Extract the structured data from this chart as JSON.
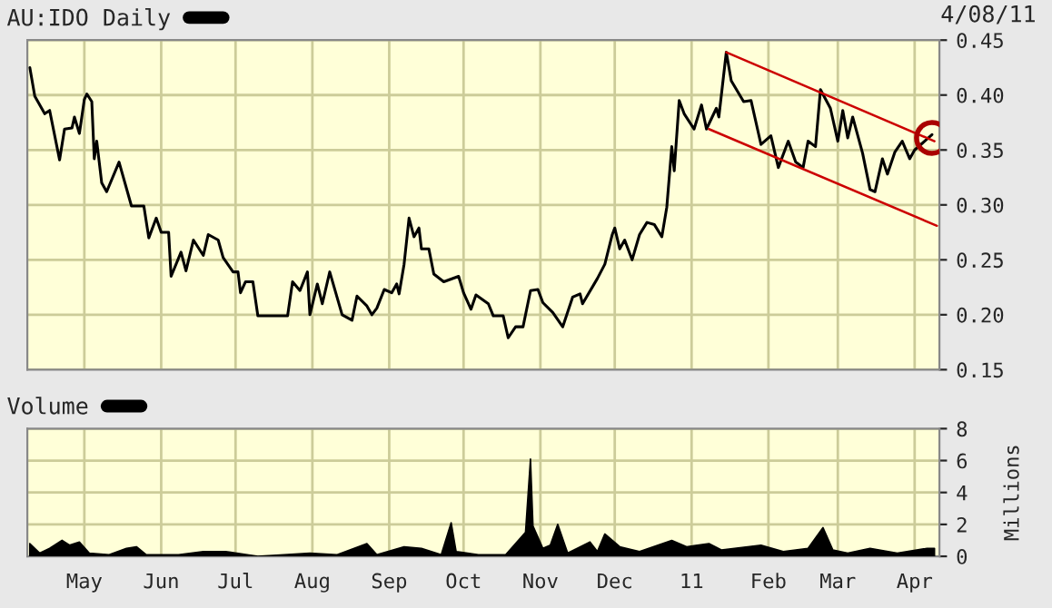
{
  "chart_data": [
    {
      "type": "line",
      "annotations": [
        "4/08/11"
      ],
      "legend": "top left",
      "grid": true,
      "tick_labels": "y",
      "xlim": [
        "2010-04-08",
        "2011-04-11"
      ],
      "xticks": [
        {
          "value": "2010-05-01",
          "label": null
        },
        {
          "value": "2010-06-01",
          "label": null
        },
        {
          "value": "2010-07-01",
          "label": null
        },
        {
          "value": "2010-08-01",
          "label": null
        },
        {
          "value": "2010-09-01",
          "label": null
        },
        {
          "value": "2010-10-01",
          "label": null
        },
        {
          "value": "2010-11-01",
          "label": null
        },
        {
          "value": "2010-12-01",
          "label": null
        },
        {
          "value": "2011-01-01",
          "label": null
        },
        {
          "value": "2011-02-01",
          "label": null
        },
        {
          "value": "2011-03-01",
          "label": null
        },
        {
          "value": "2011-04-01",
          "label": null
        }
      ],
      "ylim": [
        0.15,
        0.45
      ],
      "yticks": [
        {
          "value": 0.15,
          "label": "0.15"
        },
        {
          "value": 0.2,
          "label": "0.20"
        },
        {
          "value": 0.25,
          "label": "0.25"
        },
        {
          "value": 0.3,
          "label": "0.30"
        },
        {
          "value": 0.35,
          "label": "0.35"
        },
        {
          "value": 0.4,
          "label": "0.40"
        },
        {
          "value": 0.45,
          "label": "0.45"
        }
      ],
      "series": [
        {
          "name": "AU:IDO Daily",
          "color": "#000000",
          "x": [
            "2010-04-09",
            "2010-04-11",
            "2010-04-15",
            "2010-04-17",
            "2010-04-21",
            "2010-04-23",
            "2010-04-26",
            "2010-04-27",
            "2010-04-29",
            "2010-05-01",
            "2010-05-02",
            "2010-05-04",
            "2010-05-05",
            "2010-05-06",
            "2010-05-08",
            "2010-05-10",
            "2010-05-15",
            "2010-05-20",
            "2010-05-25",
            "2010-05-27",
            "2010-05-30",
            "2010-06-01",
            "2010-06-04",
            "2010-06-05",
            "2010-06-09",
            "2010-06-11",
            "2010-06-14",
            "2010-06-18",
            "2010-06-20",
            "2010-06-24",
            "2010-06-26",
            "2010-06-30",
            "2010-07-02",
            "2010-07-03",
            "2010-07-05",
            "2010-07-08",
            "2010-07-10",
            "2010-07-22",
            "2010-07-24",
            "2010-07-27",
            "2010-07-30",
            "2010-07-31",
            "2010-08-03",
            "2010-08-05",
            "2010-08-08",
            "2010-08-13",
            "2010-08-17",
            "2010-08-19",
            "2010-08-23",
            "2010-08-25",
            "2010-08-27",
            "2010-08-30",
            "2010-09-02",
            "2010-09-04",
            "2010-09-05",
            "2010-09-07",
            "2010-09-09",
            "2010-09-11",
            "2010-09-13",
            "2010-09-14",
            "2010-09-17",
            "2010-09-19",
            "2010-09-23",
            "2010-09-29",
            "2010-10-01",
            "2010-10-04",
            "2010-10-06",
            "2010-10-11",
            "2010-10-13",
            "2010-10-17",
            "2010-10-19",
            "2010-10-22",
            "2010-10-25",
            "2010-10-28",
            "2010-10-31",
            "2010-11-02",
            "2010-11-06",
            "2010-11-10",
            "2010-11-14",
            "2010-11-17",
            "2010-11-18",
            "2010-11-24",
            "2010-11-27",
            "2010-11-30",
            "2010-12-01",
            "2010-12-03",
            "2010-12-05",
            "2010-12-08",
            "2010-12-11",
            "2010-12-14",
            "2010-12-17",
            "2010-12-20",
            "2010-12-22",
            "2010-12-24",
            "2010-12-25",
            "2010-12-27",
            "2010-12-29",
            "2011-01-02",
            "2011-01-05",
            "2011-01-07",
            "2011-01-11",
            "2011-01-12",
            "2011-01-15",
            "2011-01-17",
            "2011-01-22",
            "2011-01-25",
            "2011-01-29",
            "2011-02-02",
            "2011-02-05",
            "2011-02-09",
            "2011-02-12",
            "2011-02-15",
            "2011-02-17",
            "2011-02-20",
            "2011-02-22",
            "2011-02-26",
            "2011-03-01",
            "2011-03-03",
            "2011-03-05",
            "2011-03-07",
            "2011-03-11",
            "2011-03-14",
            "2011-03-16",
            "2011-03-19",
            "2011-03-21",
            "2011-03-24",
            "2011-03-27",
            "2011-03-30",
            "2011-04-01",
            "2011-04-05",
            "2011-04-08"
          ],
          "values": [
            0.425,
            0.399,
            0.383,
            0.386,
            0.341,
            0.369,
            0.37,
            0.38,
            0.365,
            0.396,
            0.401,
            0.394,
            0.342,
            0.358,
            0.32,
            0.312,
            0.339,
            0.299,
            0.299,
            0.27,
            0.288,
            0.275,
            0.275,
            0.235,
            0.257,
            0.24,
            0.268,
            0.254,
            0.273,
            0.268,
            0.252,
            0.239,
            0.239,
            0.22,
            0.23,
            0.23,
            0.199,
            0.199,
            0.23,
            0.222,
            0.239,
            0.2,
            0.228,
            0.21,
            0.239,
            0.2,
            0.195,
            0.217,
            0.208,
            0.2,
            0.206,
            0.223,
            0.22,
            0.228,
            0.219,
            0.246,
            0.288,
            0.271,
            0.279,
            0.26,
            0.26,
            0.237,
            0.23,
            0.235,
            0.22,
            0.205,
            0.218,
            0.21,
            0.199,
            0.199,
            0.179,
            0.189,
            0.189,
            0.222,
            0.223,
            0.211,
            0.202,
            0.189,
            0.216,
            0.219,
            0.21,
            0.233,
            0.246,
            0.273,
            0.279,
            0.26,
            0.268,
            0.25,
            0.273,
            0.284,
            0.282,
            0.271,
            0.298,
            0.353,
            0.331,
            0.395,
            0.383,
            0.369,
            0.391,
            0.369,
            0.388,
            0.38,
            0.439,
            0.413,
            0.394,
            0.395,
            0.355,
            0.363,
            0.334,
            0.358,
            0.339,
            0.334,
            0.358,
            0.353,
            0.405,
            0.388,
            0.358,
            0.386,
            0.361,
            0.38,
            0.347,
            0.314,
            0.312,
            0.342,
            0.328,
            0.348,
            0.358,
            0.342,
            0.35,
            0.358,
            0.364
          ]
        },
        {
          "color": "#cc0000",
          "type": "line",
          "x": [
            "2011-01-15",
            "2011-04-09"
          ],
          "values": [
            0.439,
            0.358
          ]
        },
        {
          "color": "#cc0000",
          "type": "line",
          "x": [
            "2011-01-08",
            "2011-04-10"
          ],
          "values": [
            0.369,
            0.281
          ]
        },
        {
          "color": "#aa0000",
          "type": "scatter",
          "marker": "circle",
          "x": [
            "2011-04-08"
          ],
          "values": [
            0.361
          ]
        }
      ]
    },
    {
      "type": "area",
      "ylabel": "Millions",
      "legend": "top left",
      "grid": true,
      "xlim": [
        "2010-04-08",
        "2011-04-11"
      ],
      "xticks": [
        {
          "value": "2010-05-01",
          "label": "May"
        },
        {
          "value": "2010-06-01",
          "label": "Jun"
        },
        {
          "value": "2010-07-01",
          "label": "Jul"
        },
        {
          "value": "2010-08-01",
          "label": "Aug"
        },
        {
          "value": "2010-09-01",
          "label": "Sep"
        },
        {
          "value": "2010-10-01",
          "label": "Oct"
        },
        {
          "value": "2010-11-01",
          "label": "Nov"
        },
        {
          "value": "2010-12-01",
          "label": "Dec"
        },
        {
          "value": "2011-01-01",
          "label": "11"
        },
        {
          "value": "2011-02-01",
          "label": "Feb"
        },
        {
          "value": "2011-03-01",
          "label": "Mar"
        },
        {
          "value": "2011-04-01",
          "label": "Apr"
        }
      ],
      "ylim": [
        0,
        8
      ],
      "yticks": [
        0,
        2,
        4,
        6,
        8
      ],
      "series": [
        {
          "name": "Volume",
          "color": "#000000",
          "x": [
            "2010-04-09",
            "2010-04-13",
            "2010-04-17",
            "2010-04-22",
            "2010-04-25",
            "2010-04-29",
            "2010-05-03",
            "2010-05-11",
            "2010-05-18",
            "2010-05-22",
            "2010-05-26",
            "2010-06-08",
            "2010-06-18",
            "2010-06-27",
            "2010-07-10",
            "2010-07-31",
            "2010-08-11",
            "2010-08-23",
            "2010-08-27",
            "2010-09-07",
            "2010-09-14",
            "2010-09-22",
            "2010-09-26",
            "2010-09-28",
            "2010-10-07",
            "2010-10-18",
            "2010-10-26",
            "2010-10-28",
            "2010-10-29",
            "2010-11-02",
            "2010-11-05",
            "2010-11-08",
            "2010-11-12",
            "2010-11-21",
            "2010-11-24",
            "2010-11-27",
            "2010-12-03",
            "2010-12-11",
            "2010-12-24",
            "2010-12-30",
            "2011-01-08",
            "2011-01-13",
            "2011-01-29",
            "2011-02-07",
            "2011-02-17",
            "2011-02-23",
            "2011-02-27",
            "2011-03-05",
            "2011-03-14",
            "2011-03-25",
            "2011-04-06",
            "2011-04-09"
          ],
          "values": [
            0.8,
            0.2,
            0.5,
            1.0,
            0.7,
            0.9,
            0.2,
            0.1,
            0.5,
            0.6,
            0.1,
            0.1,
            0.3,
            0.3,
            0.0,
            0.2,
            0.1,
            0.8,
            0.1,
            0.6,
            0.5,
            0.1,
            2.1,
            0.3,
            0.1,
            0.1,
            1.5,
            6.1,
            1.9,
            0.5,
            0.7,
            2.0,
            0.2,
            0.9,
            0.3,
            1.4,
            0.6,
            0.3,
            1.0,
            0.6,
            0.8,
            0.4,
            0.7,
            0.3,
            0.5,
            1.8,
            0.4,
            0.2,
            0.5,
            0.2,
            0.5,
            0.5
          ]
        }
      ]
    }
  ]
}
